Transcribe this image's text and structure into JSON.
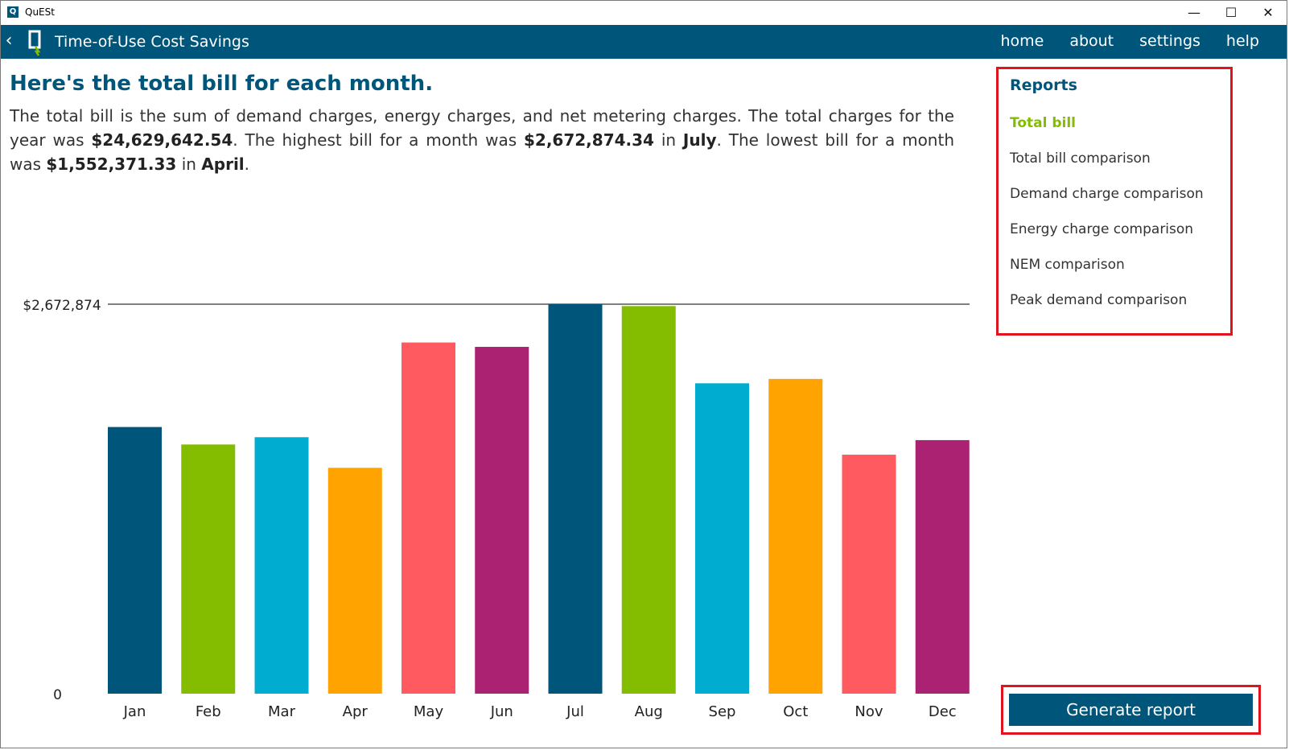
{
  "window": {
    "title": "QuESt",
    "icon_text": "Q",
    "minimize": "—",
    "maximize": "☐",
    "close": "✕"
  },
  "nav": {
    "back_icon": "‹",
    "title": "Time-of-Use Cost Savings",
    "links": [
      "home",
      "about",
      "settings",
      "help"
    ]
  },
  "main": {
    "heading": "Here's the total bill for each month.",
    "desc_1": "The total bill is the sum of demand charges, energy charges, and net metering charges. The total charges for the year was ",
    "total": "$24,629,642.54",
    "desc_2": ". The highest bill for a month was ",
    "highest": "$2,672,874.34",
    "desc_3": " in ",
    "highest_month": "July",
    "desc_4": ". The lowest bill for a month was ",
    "lowest": "$1,552,371.33",
    "desc_5": " in ",
    "lowest_month": "April",
    "desc_6": "."
  },
  "sidebar": {
    "title": "Reports",
    "items": [
      "Total bill",
      "Total bill comparison",
      "Demand charge comparison",
      "Energy charge comparison",
      "NEM comparison",
      "Peak demand comparison"
    ],
    "active_index": 0
  },
  "actions": {
    "generate_label": "Generate report"
  },
  "colors": {
    "primary": "#00567a",
    "accent": "#84bd00",
    "highlight": "#e0141e"
  },
  "chart_data": {
    "type": "bar",
    "categories": [
      "Jan",
      "Feb",
      "Mar",
      "Apr",
      "May",
      "Jun",
      "Jul",
      "Aug",
      "Sep",
      "Oct",
      "Nov",
      "Dec"
    ],
    "values": [
      1830000,
      1710000,
      1760000,
      1550000,
      2410000,
      2380000,
      2672874,
      2660000,
      2130000,
      2160000,
      1640000,
      1740000
    ],
    "colors": [
      "#00567a",
      "#84bd00",
      "#00acd0",
      "#ffa300",
      "#ff5a5f",
      "#ab2273",
      "#00567a",
      "#84bd00",
      "#00acd0",
      "#ffa300",
      "#ff5a5f",
      "#ab2273"
    ],
    "ytick_labels": [
      "0",
      "$2,672,874"
    ],
    "ylim": [
      0,
      2672874
    ]
  }
}
